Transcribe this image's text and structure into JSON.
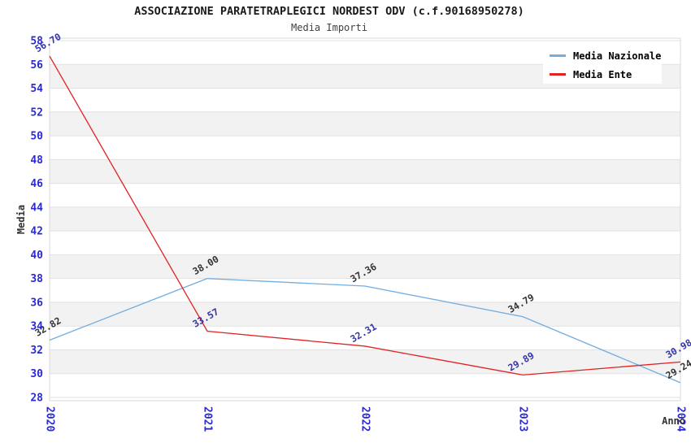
{
  "chart_data": {
    "type": "line",
    "title": "ASSOCIAZIONE PARATETRAPLEGICI NORDEST ODV (c.f.90168950278)",
    "subtitle": "Media Importi",
    "xlabel": "Anno",
    "ylabel": "Media",
    "categories": [
      "2020",
      "2021",
      "2022",
      "2023",
      "2024"
    ],
    "series": [
      {
        "name": "Media Nazionale",
        "color": "#74ADDF",
        "label_color": "#333333",
        "values": [
          32.82,
          38.0,
          37.36,
          34.79,
          29.24
        ],
        "point_labels": [
          "32.82",
          "38.00",
          "37.36",
          "34.79",
          "29.24"
        ]
      },
      {
        "name": "Media Ente",
        "color": "#E12222",
        "label_color": "#3434AC",
        "values": [
          56.7,
          33.57,
          32.31,
          29.89,
          30.98
        ],
        "point_labels": [
          "56.70",
          "33.57",
          "32.31",
          "29.89",
          "30.98"
        ]
      }
    ],
    "ylim": [
      28,
      58
    ],
    "ytick_step": 2,
    "y_ticks": [
      58,
      56,
      54,
      52,
      50,
      48,
      46,
      44,
      42,
      40,
      38,
      36,
      34,
      32,
      30,
      28
    ],
    "legend": {
      "position": "top-right",
      "entries": [
        "Media Nazionale",
        "Media Ente"
      ]
    },
    "grid": "horizontal gridlines with alternating shaded bands",
    "colors": {
      "tick_label": "#2A2ACF",
      "axis_title": "#333333",
      "band_shade": "#F2F2F2",
      "gridline": "#E2E2E2",
      "plot_border": "#D8D8D8",
      "background": "#FFFFFF"
    }
  }
}
